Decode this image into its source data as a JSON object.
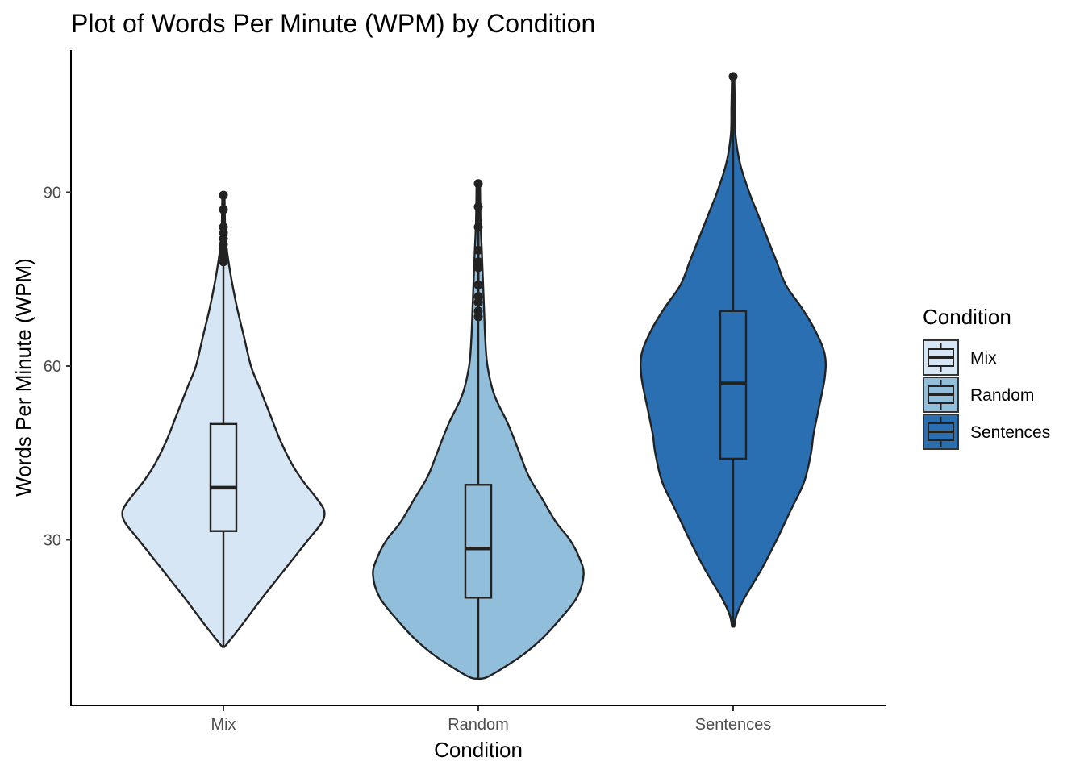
{
  "chart_data": {
    "type": "violin",
    "title": "Plot of Words Per Minute (WPM)  by Condition",
    "xlabel": "Condition",
    "ylabel": "Words Per Minute (WPM)",
    "ylim": [
      5,
      114
    ],
    "yticks": [
      30,
      60,
      90
    ],
    "grid": false,
    "legend": {
      "title": "Condition",
      "position": "right"
    },
    "categories": [
      "Mix",
      "Random",
      "Sentences"
    ],
    "series": [
      {
        "name": "Mix",
        "color": "#d6e6f4",
        "min": 11.5,
        "q1": 31.5,
        "median": 39,
        "q3": 50,
        "whisker_high": 77.5,
        "outliers": [
          78,
          79,
          80,
          81,
          82,
          83,
          84,
          87,
          89.5
        ],
        "density": [
          [
            11.5,
            0.01
          ],
          [
            12,
            0.03
          ],
          [
            15,
            0.15
          ],
          [
            20,
            0.34
          ],
          [
            25,
            0.54
          ],
          [
            30,
            0.74
          ],
          [
            33,
            0.86
          ],
          [
            35,
            0.88
          ],
          [
            37,
            0.82
          ],
          [
            40,
            0.7
          ],
          [
            43,
            0.6
          ],
          [
            47,
            0.5
          ],
          [
            52,
            0.4
          ],
          [
            55,
            0.34
          ],
          [
            57,
            0.3
          ],
          [
            60,
            0.24
          ],
          [
            65,
            0.18
          ],
          [
            70,
            0.12
          ],
          [
            75,
            0.07
          ],
          [
            80,
            0.03
          ],
          [
            84,
            0.015
          ],
          [
            89.5,
            0.01
          ]
        ]
      },
      {
        "name": "Random",
        "color": "#91bfdb",
        "min": 6,
        "q1": 20,
        "median": 28.5,
        "q3": 39.5,
        "whisker_high": 68,
        "outliers": [
          68.5,
          69.5,
          71,
          72,
          74,
          77,
          78,
          80,
          84,
          87.5,
          91.5
        ],
        "density": [
          [
            6,
            0.01
          ],
          [
            6.5,
            0.1
          ],
          [
            10,
            0.38
          ],
          [
            13,
            0.56
          ],
          [
            16,
            0.7
          ],
          [
            20,
            0.86
          ],
          [
            24,
            0.92
          ],
          [
            27,
            0.88
          ],
          [
            30,
            0.8
          ],
          [
            33,
            0.68
          ],
          [
            37,
            0.56
          ],
          [
            41,
            0.44
          ],
          [
            45,
            0.36
          ],
          [
            50,
            0.26
          ],
          [
            55,
            0.14
          ],
          [
            60,
            0.08
          ],
          [
            65,
            0.06
          ],
          [
            70,
            0.05
          ],
          [
            75,
            0.04
          ],
          [
            80,
            0.03
          ],
          [
            85,
            0.02
          ],
          [
            91.5,
            0.015
          ]
        ]
      },
      {
        "name": "Sentences",
        "color": "#2b6fb3",
        "min": 15,
        "q1": 44,
        "median": 57,
        "q3": 69.5,
        "whisker_high": 110,
        "outliers": [
          110
        ],
        "density": [
          [
            15,
            0.01
          ],
          [
            17,
            0.03
          ],
          [
            20,
            0.1
          ],
          [
            25,
            0.25
          ],
          [
            30,
            0.38
          ],
          [
            35,
            0.5
          ],
          [
            40,
            0.62
          ],
          [
            45,
            0.68
          ],
          [
            48,
            0.7
          ],
          [
            52,
            0.74
          ],
          [
            58,
            0.8
          ],
          [
            62,
            0.8
          ],
          [
            66,
            0.72
          ],
          [
            70,
            0.6
          ],
          [
            74,
            0.46
          ],
          [
            78,
            0.38
          ],
          [
            82,
            0.3
          ],
          [
            86,
            0.22
          ],
          [
            90,
            0.14
          ],
          [
            95,
            0.06
          ],
          [
            100,
            0.02
          ],
          [
            105,
            0.015
          ],
          [
            110,
            0.01
          ]
        ]
      }
    ]
  }
}
